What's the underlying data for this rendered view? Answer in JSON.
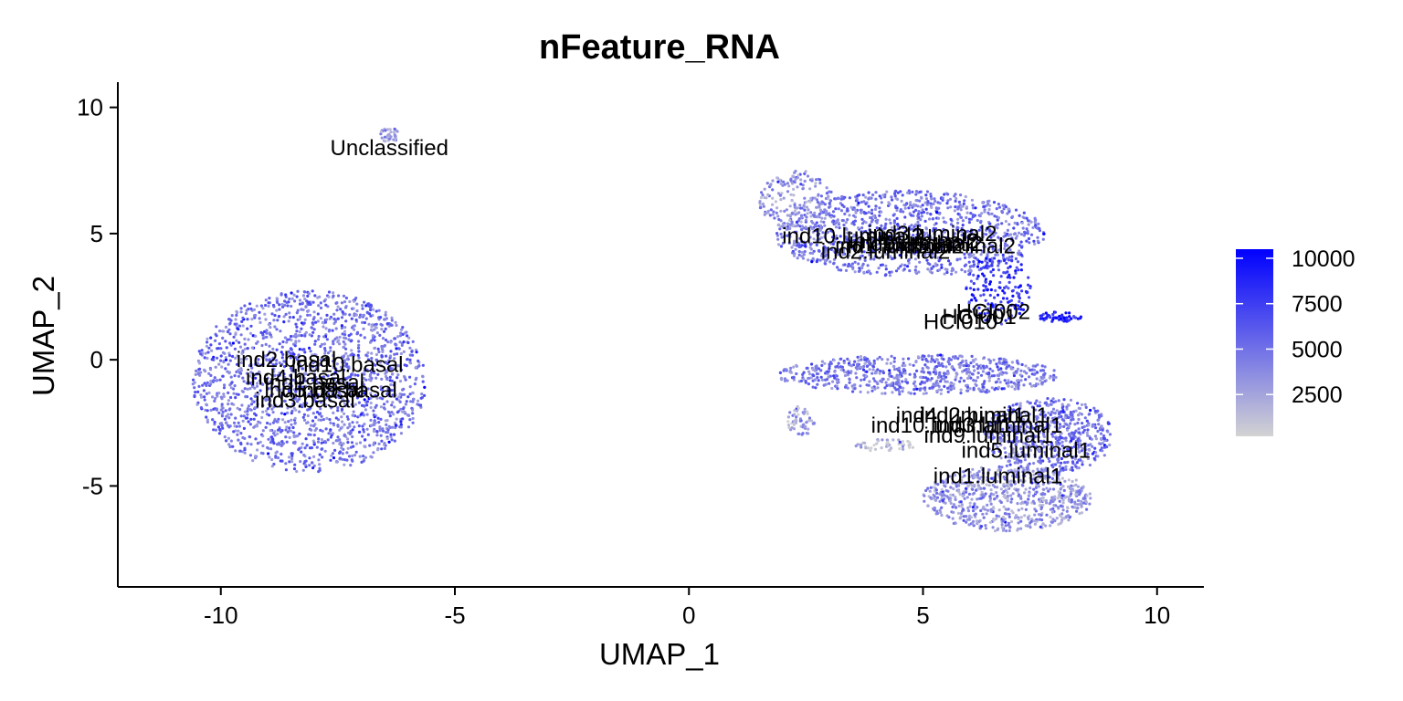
{
  "chart_data": {
    "type": "scatter",
    "title": "nFeature_RNA",
    "xlabel": "UMAP_1",
    "ylabel": "UMAP_2",
    "xlim": [
      -12.2,
      11
    ],
    "ylim": [
      -9,
      11
    ],
    "x_ticks": [
      -10,
      -5,
      0,
      5,
      10
    ],
    "x_tick_labels": [
      "-10",
      "-5",
      "0",
      "5",
      "10"
    ],
    "y_ticks": [
      10,
      5,
      0,
      -5
    ],
    "y_tick_labels": [
      "10",
      "5",
      "0",
      "-5"
    ],
    "grid": false,
    "legend": {
      "placement": "right",
      "type": "colorbar",
      "min": 200,
      "max": 10500,
      "ticks": [
        10000,
        7500,
        5000,
        2500
      ],
      "tick_labels": [
        "10000",
        "7500",
        "5000",
        "2500"
      ],
      "low_color": "#d3d3d3",
      "high_color": "#0000ff"
    },
    "point_colors": {
      "low": "#d3d3d3",
      "high": "#0000ff"
    },
    "clusters": [
      {
        "cx": -8.1,
        "cy": -0.85,
        "rx": 2.5,
        "ry": 3.6,
        "n": 1700,
        "level": 0.45
      },
      {
        "cx": 4.7,
        "cy": 5.0,
        "rx": 2.9,
        "ry": 1.7,
        "n": 1100,
        "level": 0.45
      },
      {
        "cx": 2.3,
        "cy": 6.3,
        "rx": 0.8,
        "ry": 1.2,
        "n": 180,
        "level": 0.3
      },
      {
        "cx": 6.6,
        "cy": 2.8,
        "rx": 0.7,
        "ry": 1.4,
        "n": 160,
        "level": 0.75
      },
      {
        "cx": 7.9,
        "cy": 1.7,
        "rx": 0.5,
        "ry": 0.2,
        "n": 50,
        "level": 0.85
      },
      {
        "cx": 4.9,
        "cy": -0.6,
        "rx": 3.0,
        "ry": 0.8,
        "n": 700,
        "level": 0.42
      },
      {
        "cx": 7.7,
        "cy": -3.0,
        "rx": 1.4,
        "ry": 1.5,
        "n": 600,
        "level": 0.45
      },
      {
        "cx": 6.8,
        "cy": -5.5,
        "rx": 1.8,
        "ry": 1.3,
        "n": 700,
        "level": 0.3
      },
      {
        "cx": 2.4,
        "cy": -2.4,
        "rx": 0.3,
        "ry": 0.6,
        "n": 60,
        "level": 0.2
      },
      {
        "cx": 4.2,
        "cy": -3.4,
        "rx": 0.7,
        "ry": 0.25,
        "n": 50,
        "level": 0.15
      },
      {
        "cx": -6.4,
        "cy": 8.9,
        "rx": 0.2,
        "ry": 0.3,
        "n": 35,
        "level": 0.3
      }
    ],
    "annotations": [
      {
        "text": "Unclassified",
        "x": -6.4,
        "y": 8.4
      },
      {
        "text": "ind10.luminal2",
        "x": 3.5,
        "y": 4.9
      },
      {
        "text": "ind3.luminal2",
        "x": 5.2,
        "y": 5.0
      },
      {
        "text": "ind4.luminal2",
        "x": 4.8,
        "y": 4.7
      },
      {
        "text": "ind9.luminal2",
        "x": 4.9,
        "y": 4.6
      },
      {
        "text": "ind5.luminal2",
        "x": 5.6,
        "y": 4.5
      },
      {
        "text": "ind1.luminal2",
        "x": 4.5,
        "y": 4.5
      },
      {
        "text": "ind2.luminal2",
        "x": 4.2,
        "y": 4.3
      },
      {
        "text": "HCI002",
        "x": 6.5,
        "y": 1.9
      },
      {
        "text": "HCI001",
        "x": 6.2,
        "y": 1.7
      },
      {
        "text": "HCI010",
        "x": 5.8,
        "y": 1.5
      },
      {
        "text": "ind2.basal",
        "x": -8.6,
        "y": 0.0
      },
      {
        "text": "ind10.basal",
        "x": -7.3,
        "y": -0.2
      },
      {
        "text": "ind4.basal",
        "x": -8.4,
        "y": -0.7
      },
      {
        "text": "ind1.basal",
        "x": -8.0,
        "y": -0.9
      },
      {
        "text": "ind9.basal",
        "x": -7.3,
        "y": -1.2
      },
      {
        "text": "ind5.basal",
        "x": -8.0,
        "y": -1.2
      },
      {
        "text": "ind3.basal",
        "x": -8.2,
        "y": -1.6
      },
      {
        "text": "ind4.luminal1",
        "x": 5.8,
        "y": -2.2
      },
      {
        "text": "ind2.luminal1",
        "x": 6.3,
        "y": -2.2
      },
      {
        "text": "ind10.luminal1",
        "x": 5.4,
        "y": -2.6
      },
      {
        "text": "ind3.luminal1",
        "x": 6.6,
        "y": -2.6
      },
      {
        "text": "ind9.luminal1",
        "x": 6.4,
        "y": -3.0
      },
      {
        "text": "ind5.luminal1",
        "x": 7.2,
        "y": -3.6
      },
      {
        "text": "ind1.luminal1",
        "x": 6.6,
        "y": -4.6
      }
    ]
  }
}
